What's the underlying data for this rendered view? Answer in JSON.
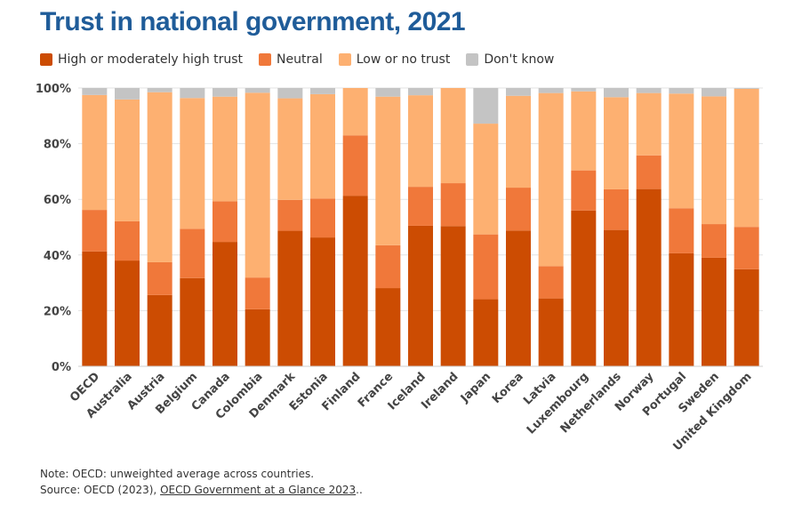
{
  "chart_data": {
    "type": "bar",
    "stacked": true,
    "title": "Trust in national government, 2021",
    "categories": [
      "OECD",
      "Australia",
      "Austria",
      "Belgium",
      "Canada",
      "Colombia",
      "Denmark",
      "Estonia",
      "Finland",
      "France",
      "Iceland",
      "Ireland",
      "Japan",
      "Korea",
      "Latvia",
      "Luxembourg",
      "Netherlands",
      "Norway",
      "Portugal",
      "Sweden",
      "United Kingdom"
    ],
    "series": [
      {
        "name": "High or moderately high trust",
        "color": "#cc4c02",
        "values": [
          41.3,
          38.0,
          25.6,
          31.7,
          44.7,
          20.5,
          48.7,
          46.3,
          61.3,
          28.1,
          50.5,
          50.4,
          24.1,
          48.8,
          24.4,
          56.0,
          49.0,
          63.7,
          40.6,
          39.0,
          34.9
        ]
      },
      {
        "name": "Neutral",
        "color": "#f0783a",
        "values": [
          14.9,
          14.1,
          11.8,
          17.7,
          14.6,
          11.4,
          11.1,
          14.0,
          21.7,
          15.4,
          14.0,
          15.4,
          23.3,
          15.4,
          11.6,
          14.4,
          14.6,
          12.1,
          16.2,
          12.1,
          15.2
        ]
      },
      {
        "name": "Low or no trust",
        "color": "#fdb071",
        "values": [
          41.3,
          43.8,
          61.1,
          47.0,
          37.6,
          66.4,
          36.5,
          37.5,
          17.0,
          53.4,
          32.9,
          34.2,
          39.8,
          33.0,
          62.2,
          28.4,
          33.1,
          22.4,
          41.2,
          45.9,
          49.6
        ]
      },
      {
        "name": "Don't know",
        "color": "#c4c4c4",
        "values": [
          2.5,
          4.1,
          1.5,
          3.6,
          3.1,
          1.7,
          3.7,
          2.2,
          0.0,
          3.1,
          2.6,
          0.0,
          12.8,
          2.8,
          1.8,
          1.2,
          3.3,
          1.8,
          2.0,
          3.0,
          0.3
        ]
      }
    ],
    "y_ticks": [
      "0%",
      "20%",
      "40%",
      "60%",
      "80%",
      "100%"
    ],
    "ylim": [
      0,
      100
    ],
    "ylabel": "",
    "xlabel": "",
    "grid": true,
    "legend_position": "top-left"
  },
  "footer": {
    "note": "Note: OECD: unweighted average across countries.",
    "source_prefix": "Source: OECD (2023), ",
    "source_link": "OECD Government at a Glance 2023",
    "source_suffix": ".."
  }
}
